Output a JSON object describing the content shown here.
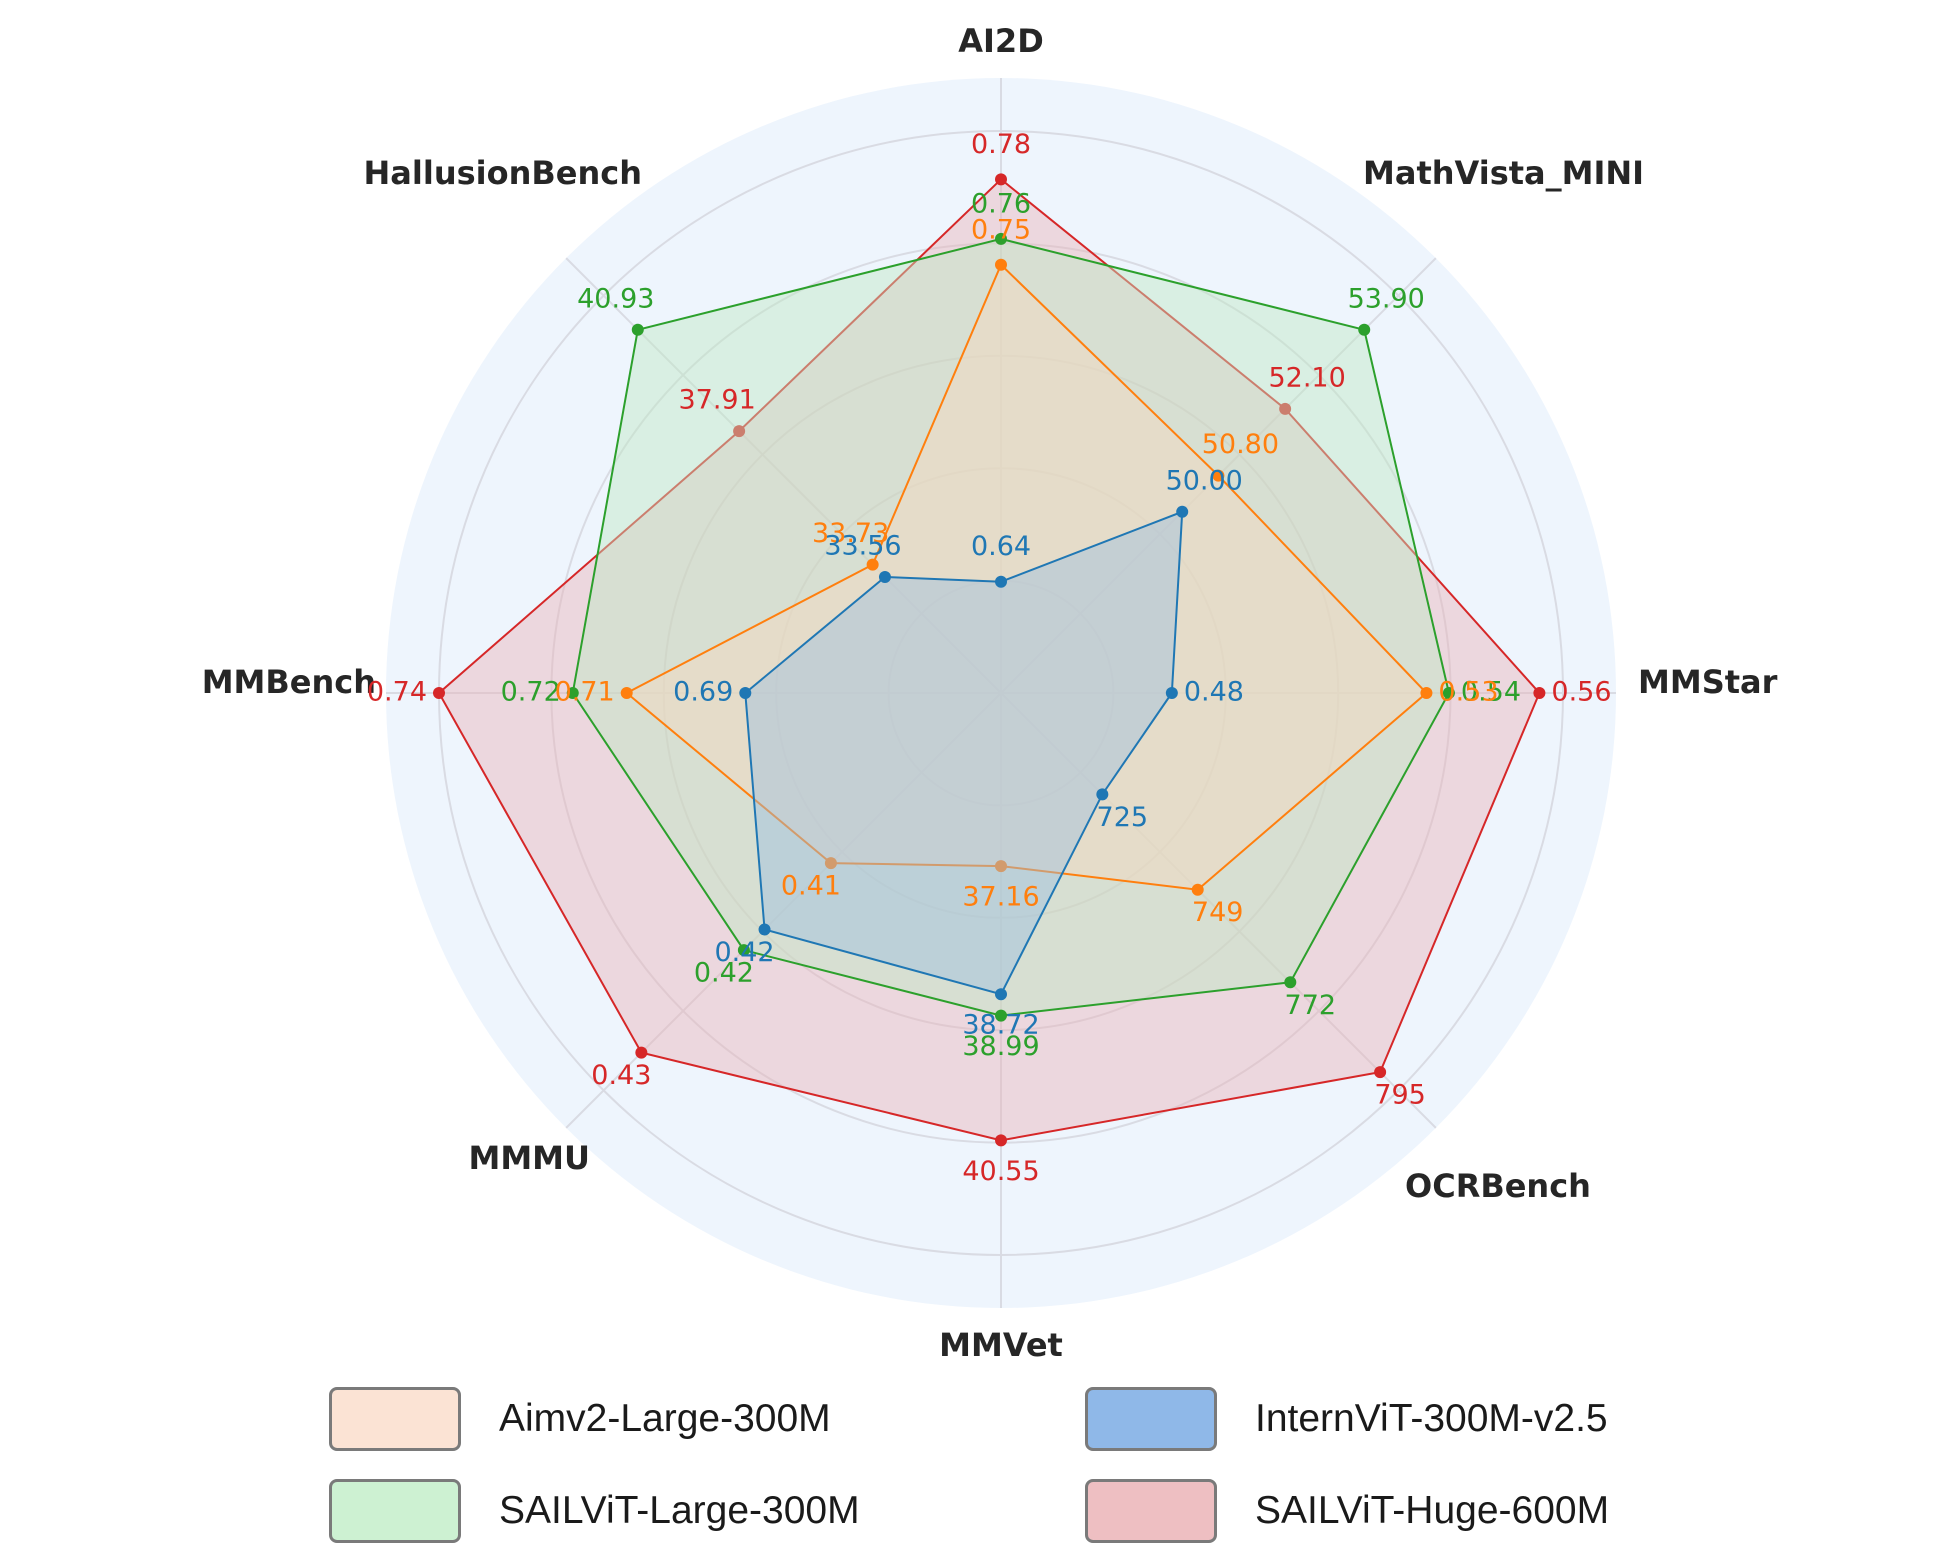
{
  "chart_data": {
    "type": "radar",
    "axes": [
      "AI2D",
      "MathVista_MINI",
      "MMStar",
      "OCRBench",
      "MMVet",
      "MMMU",
      "MMBench",
      "HallusionBench"
    ],
    "series": [
      {
        "name": "SAILViT-Huge-600M",
        "color": "#d62728",
        "fill": "#e9b3b7",
        "values": [
          0.78,
          52.1,
          0.56,
          795,
          40.55,
          0.43,
          0.74,
          37.91
        ],
        "labels": [
          "0.78",
          "52.10",
          "0.56",
          "795",
          "40.55",
          "0.43",
          "0.74",
          "37.91"
        ],
        "r": [
          0.914,
          0.715,
          0.958,
          0.954,
          0.796,
          0.905,
          1.0,
          0.659
        ]
      },
      {
        "name": "SAILViT-Large-300M",
        "color": "#2ca02c",
        "fill": "#bfe8c4",
        "values": [
          0.76,
          53.9,
          0.54,
          772,
          38.99,
          0.42,
          0.72,
          40.93
        ],
        "labels": [
          "0.76",
          "53.90",
          "0.54",
          "772",
          "38.99",
          "0.42",
          "0.72",
          "40.93"
        ],
        "r": [
          0.808,
          0.914,
          0.797,
          0.728,
          0.574,
          0.647,
          0.762,
          0.914
        ]
      },
      {
        "name": "Aimv2-Large-300M",
        "color": "#ff7f0e",
        "fill": "#f7d9bf",
        "values": [
          0.75,
          50.8,
          0.53,
          749,
          37.16,
          0.41,
          0.71,
          33.73
        ],
        "labels": [
          "0.75",
          "50.80",
          "0.53",
          "749",
          "37.16",
          "0.41",
          "0.71",
          "33.73"
        ],
        "r": [
          0.762,
          0.547,
          0.757,
          0.495,
          0.308,
          0.428,
          0.666,
          0.323
        ]
      },
      {
        "name": "InternViT-300M-v2.5",
        "color": "#1f77b4",
        "fill": "#9cbfe0",
        "values": [
          0.64,
          50.0,
          0.48,
          725,
          38.72,
          0.42,
          0.69,
          33.56
        ],
        "labels": [
          "0.64",
          "50.00",
          "0.48",
          "725",
          "38.72",
          "0.42",
          "0.69",
          "33.56"
        ],
        "r": [
          0.198,
          0.456,
          0.304,
          0.255,
          0.536,
          0.595,
          0.455,
          0.292
        ]
      }
    ],
    "legend_placement": "bottom",
    "grid": true
  },
  "legend": [
    {
      "name": "Aimv2-Large-300M",
      "swatch": "#fbe3d4"
    },
    {
      "name": "InternViT-300M-v2.5",
      "swatch": "#8fb8e8"
    },
    {
      "name": "SAILViT-Large-300M",
      "swatch": "#cdf1d2"
    },
    {
      "name": "SAILViT-Huge-600M",
      "swatch": "#eebfc2"
    }
  ]
}
